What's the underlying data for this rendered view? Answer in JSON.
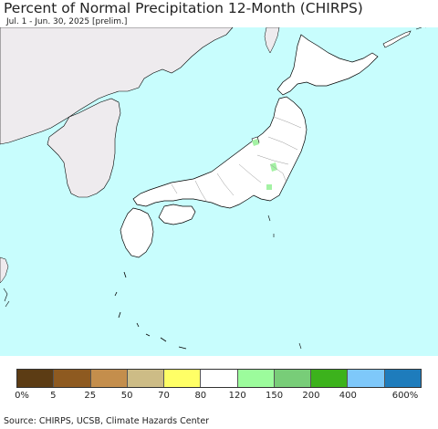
{
  "header": {
    "title": "Percent of Normal Precipitation 12-Month (CHIRPS)",
    "subtitle": "Jul. 1 - Jun. 30, 2025 [prelim.]"
  },
  "map": {
    "ocean_color": "#c8fdfd",
    "land_outside_color": "#eeebee",
    "land_japan_color": "#ffffff",
    "coast_color": "#000000",
    "prefecture_line_color": "#999999",
    "wet_patch_color": "#a4f2a4"
  },
  "legend": {
    "colors": [
      "#5c3c14",
      "#8e5a20",
      "#c48e4c",
      "#cdbc86",
      "#ffff66",
      "#ffffff",
      "#9cfc9c",
      "#78cd78",
      "#3cb21c",
      "#7ec8fa",
      "#1e7cbc"
    ],
    "ticks": [
      "0%",
      "5",
      "25",
      "50",
      "70",
      "80",
      "120",
      "150",
      "200",
      "400",
      "600%"
    ]
  },
  "footer": {
    "source": "Source: CHIRPS, UCSB, Climate Hazards Center"
  }
}
